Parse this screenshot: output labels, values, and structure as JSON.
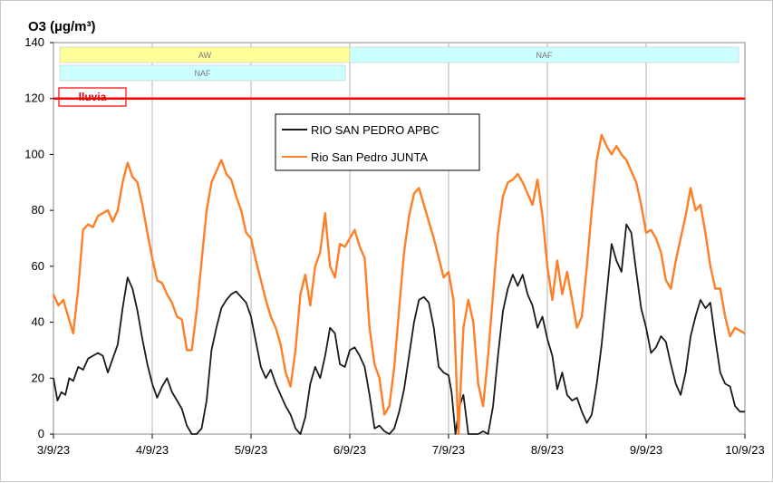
{
  "chart_data": {
    "type": "line",
    "title": "O3  (µg/m³)",
    "ylim": [
      0,
      140
    ],
    "y_ticks": [
      0,
      20,
      40,
      60,
      80,
      100,
      120,
      140
    ],
    "xlim": [
      "3/9/23",
      "10/9/23"
    ],
    "x_ticks": [
      "3/9/23",
      "4/9/23",
      "5/9/23",
      "6/9/23",
      "7/9/23",
      "8/9/23",
      "9/9/23",
      "10/9/23"
    ],
    "grid": "vertical",
    "legend_position": "upper-center",
    "threshold": {
      "value": 120,
      "color": "#ff0000",
      "label": "lluvia"
    },
    "bands": [
      {
        "label": "AW",
        "start": 0.0,
        "end": 3.0,
        "row": 1,
        "color": "#ffff99"
      },
      {
        "label": "NAF",
        "start": 3.0,
        "end": 7.0,
        "row": 1,
        "color": "#ccffff"
      },
      {
        "label": "NAF",
        "start": 0.0,
        "end": 3.0,
        "row": 2,
        "color": "#ccffff"
      }
    ],
    "series": [
      {
        "name": "RIO SAN PEDRO APBC",
        "color": "#1a1a1a",
        "points": [
          [
            0,
            20
          ],
          [
            0.04,
            12
          ],
          [
            0.08,
            15
          ],
          [
            0.12,
            14
          ],
          [
            0.16,
            20
          ],
          [
            0.2,
            19
          ],
          [
            0.25,
            24
          ],
          [
            0.3,
            23
          ],
          [
            0.35,
            27
          ],
          [
            0.4,
            28
          ],
          [
            0.45,
            29
          ],
          [
            0.5,
            28
          ],
          [
            0.55,
            22
          ],
          [
            0.6,
            27
          ],
          [
            0.65,
            32
          ],
          [
            0.7,
            45
          ],
          [
            0.75,
            56
          ],
          [
            0.8,
            52
          ],
          [
            0.85,
            44
          ],
          [
            0.9,
            34
          ],
          [
            0.95,
            25
          ],
          [
            1.0,
            18
          ],
          [
            1.05,
            13
          ],
          [
            1.1,
            17
          ],
          [
            1.15,
            20
          ],
          [
            1.2,
            15
          ],
          [
            1.25,
            12
          ],
          [
            1.3,
            9
          ],
          [
            1.35,
            3
          ],
          [
            1.4,
            0
          ],
          [
            1.45,
            0
          ],
          [
            1.5,
            2
          ],
          [
            1.55,
            12
          ],
          [
            1.6,
            30
          ],
          [
            1.65,
            38
          ],
          [
            1.7,
            45
          ],
          [
            1.75,
            48
          ],
          [
            1.8,
            50
          ],
          [
            1.85,
            51
          ],
          [
            1.9,
            49
          ],
          [
            1.95,
            47
          ],
          [
            2.0,
            42
          ],
          [
            2.05,
            33
          ],
          [
            2.1,
            24
          ],
          [
            2.15,
            20
          ],
          [
            2.2,
            23
          ],
          [
            2.25,
            18
          ],
          [
            2.3,
            14
          ],
          [
            2.35,
            10
          ],
          [
            2.4,
            7
          ],
          [
            2.45,
            2
          ],
          [
            2.5,
            0
          ],
          [
            2.55,
            6
          ],
          [
            2.6,
            18
          ],
          [
            2.65,
            24
          ],
          [
            2.7,
            20
          ],
          [
            2.75,
            28
          ],
          [
            2.8,
            38
          ],
          [
            2.85,
            36
          ],
          [
            2.9,
            25
          ],
          [
            2.95,
            24
          ],
          [
            3.0,
            30
          ],
          [
            3.05,
            31
          ],
          [
            3.1,
            28
          ],
          [
            3.15,
            24
          ],
          [
            3.2,
            14
          ],
          [
            3.25,
            2
          ],
          [
            3.3,
            3
          ],
          [
            3.35,
            1
          ],
          [
            3.4,
            0
          ],
          [
            3.45,
            2
          ],
          [
            3.5,
            8
          ],
          [
            3.55,
            16
          ],
          [
            3.6,
            28
          ],
          [
            3.65,
            40
          ],
          [
            3.7,
            48
          ],
          [
            3.75,
            49
          ],
          [
            3.8,
            47
          ],
          [
            3.85,
            38
          ],
          [
            3.9,
            24
          ],
          [
            3.95,
            22
          ],
          [
            4.0,
            21
          ],
          [
            4.03,
            15
          ],
          [
            4.07,
            0
          ],
          [
            4.11,
            10
          ],
          [
            4.15,
            14
          ],
          [
            4.2,
            0
          ],
          [
            4.25,
            0
          ],
          [
            4.3,
            0
          ],
          [
            4.35,
            1
          ],
          [
            4.4,
            0
          ],
          [
            4.45,
            10
          ],
          [
            4.5,
            28
          ],
          [
            4.55,
            44
          ],
          [
            4.6,
            52
          ],
          [
            4.65,
            57
          ],
          [
            4.7,
            53
          ],
          [
            4.75,
            57
          ],
          [
            4.8,
            50
          ],
          [
            4.85,
            46
          ],
          [
            4.9,
            38
          ],
          [
            4.95,
            42
          ],
          [
            5.0,
            34
          ],
          [
            5.05,
            28
          ],
          [
            5.1,
            16
          ],
          [
            5.15,
            22
          ],
          [
            5.2,
            14
          ],
          [
            5.25,
            12
          ],
          [
            5.3,
            13
          ],
          [
            5.35,
            8
          ],
          [
            5.4,
            4
          ],
          [
            5.45,
            7
          ],
          [
            5.5,
            18
          ],
          [
            5.55,
            32
          ],
          [
            5.6,
            50
          ],
          [
            5.65,
            68
          ],
          [
            5.7,
            62
          ],
          [
            5.75,
            58
          ],
          [
            5.8,
            75
          ],
          [
            5.85,
            72
          ],
          [
            5.9,
            58
          ],
          [
            5.95,
            45
          ],
          [
            6.0,
            38
          ],
          [
            6.05,
            29
          ],
          [
            6.1,
            31
          ],
          [
            6.15,
            35
          ],
          [
            6.2,
            33
          ],
          [
            6.25,
            25
          ],
          [
            6.3,
            18
          ],
          [
            6.35,
            14
          ],
          [
            6.4,
            22
          ],
          [
            6.45,
            35
          ],
          [
            6.5,
            42
          ],
          [
            6.55,
            48
          ],
          [
            6.6,
            45
          ],
          [
            6.65,
            47
          ],
          [
            6.7,
            34
          ],
          [
            6.75,
            22
          ],
          [
            6.8,
            18
          ],
          [
            6.85,
            17
          ],
          [
            6.9,
            10
          ],
          [
            6.95,
            8
          ],
          [
            7.0,
            8
          ]
        ]
      },
      {
        "name": "Rio San Pedro JUNTA",
        "color": "#ff7f27",
        "points": [
          [
            0,
            50
          ],
          [
            0.05,
            46
          ],
          [
            0.1,
            48
          ],
          [
            0.15,
            42
          ],
          [
            0.2,
            36
          ],
          [
            0.25,
            52
          ],
          [
            0.3,
            73
          ],
          [
            0.35,
            75
          ],
          [
            0.4,
            74
          ],
          [
            0.45,
            78
          ],
          [
            0.5,
            79
          ],
          [
            0.55,
            80
          ],
          [
            0.6,
            76
          ],
          [
            0.65,
            80
          ],
          [
            0.7,
            90
          ],
          [
            0.75,
            97
          ],
          [
            0.8,
            92
          ],
          [
            0.85,
            90
          ],
          [
            0.9,
            82
          ],
          [
            0.95,
            72
          ],
          [
            1.0,
            63
          ],
          [
            1.05,
            55
          ],
          [
            1.1,
            54
          ],
          [
            1.15,
            50
          ],
          [
            1.2,
            47
          ],
          [
            1.25,
            42
          ],
          [
            1.3,
            41
          ],
          [
            1.35,
            30
          ],
          [
            1.4,
            30
          ],
          [
            1.45,
            44
          ],
          [
            1.5,
            62
          ],
          [
            1.55,
            80
          ],
          [
            1.6,
            90
          ],
          [
            1.65,
            94
          ],
          [
            1.7,
            98
          ],
          [
            1.75,
            93
          ],
          [
            1.8,
            91
          ],
          [
            1.85,
            85
          ],
          [
            1.9,
            80
          ],
          [
            1.95,
            72
          ],
          [
            2.0,
            70
          ],
          [
            2.05,
            62
          ],
          [
            2.1,
            55
          ],
          [
            2.15,
            48
          ],
          [
            2.2,
            42
          ],
          [
            2.25,
            38
          ],
          [
            2.3,
            32
          ],
          [
            2.35,
            22
          ],
          [
            2.4,
            17
          ],
          [
            2.45,
            30
          ],
          [
            2.5,
            50
          ],
          [
            2.55,
            57
          ],
          [
            2.6,
            46
          ],
          [
            2.65,
            60
          ],
          [
            2.7,
            65
          ],
          [
            2.75,
            79
          ],
          [
            2.8,
            60
          ],
          [
            2.85,
            56
          ],
          [
            2.9,
            68
          ],
          [
            2.95,
            67
          ],
          [
            3.0,
            70
          ],
          [
            3.05,
            73
          ],
          [
            3.1,
            67
          ],
          [
            3.15,
            63
          ],
          [
            3.2,
            38
          ],
          [
            3.25,
            25
          ],
          [
            3.3,
            20
          ],
          [
            3.35,
            7
          ],
          [
            3.4,
            10
          ],
          [
            3.45,
            24
          ],
          [
            3.5,
            45
          ],
          [
            3.55,
            65
          ],
          [
            3.6,
            78
          ],
          [
            3.65,
            86
          ],
          [
            3.7,
            88
          ],
          [
            3.75,
            82
          ],
          [
            3.8,
            76
          ],
          [
            3.85,
            70
          ],
          [
            3.9,
            63
          ],
          [
            3.95,
            56
          ],
          [
            4.0,
            58
          ],
          [
            4.05,
            48
          ],
          [
            4.1,
            0
          ],
          [
            4.15,
            38
          ],
          [
            4.2,
            48
          ],
          [
            4.25,
            40
          ],
          [
            4.3,
            18
          ],
          [
            4.35,
            10
          ],
          [
            4.4,
            28
          ],
          [
            4.45,
            50
          ],
          [
            4.5,
            72
          ],
          [
            4.55,
            85
          ],
          [
            4.6,
            90
          ],
          [
            4.65,
            91
          ],
          [
            4.7,
            93
          ],
          [
            4.75,
            90
          ],
          [
            4.8,
            86
          ],
          [
            4.85,
            82
          ],
          [
            4.9,
            91
          ],
          [
            4.95,
            78
          ],
          [
            5.0,
            60
          ],
          [
            5.05,
            48
          ],
          [
            5.1,
            62
          ],
          [
            5.15,
            50
          ],
          [
            5.2,
            58
          ],
          [
            5.25,
            48
          ],
          [
            5.3,
            38
          ],
          [
            5.35,
            42
          ],
          [
            5.4,
            60
          ],
          [
            5.45,
            80
          ],
          [
            5.5,
            98
          ],
          [
            5.55,
            107
          ],
          [
            5.6,
            103
          ],
          [
            5.65,
            100
          ],
          [
            5.7,
            103
          ],
          [
            5.75,
            100
          ],
          [
            5.8,
            98
          ],
          [
            5.85,
            94
          ],
          [
            5.9,
            90
          ],
          [
            5.95,
            82
          ],
          [
            6.0,
            72
          ],
          [
            6.05,
            73
          ],
          [
            6.1,
            70
          ],
          [
            6.15,
            65
          ],
          [
            6.2,
            55
          ],
          [
            6.25,
            52
          ],
          [
            6.3,
            62
          ],
          [
            6.35,
            70
          ],
          [
            6.4,
            78
          ],
          [
            6.45,
            88
          ],
          [
            6.5,
            80
          ],
          [
            6.55,
            82
          ],
          [
            6.6,
            72
          ],
          [
            6.65,
            60
          ],
          [
            6.7,
            52
          ],
          [
            6.75,
            52
          ],
          [
            6.8,
            42
          ],
          [
            6.85,
            35
          ],
          [
            6.9,
            38
          ],
          [
            7.0,
            36
          ]
        ]
      }
    ]
  }
}
